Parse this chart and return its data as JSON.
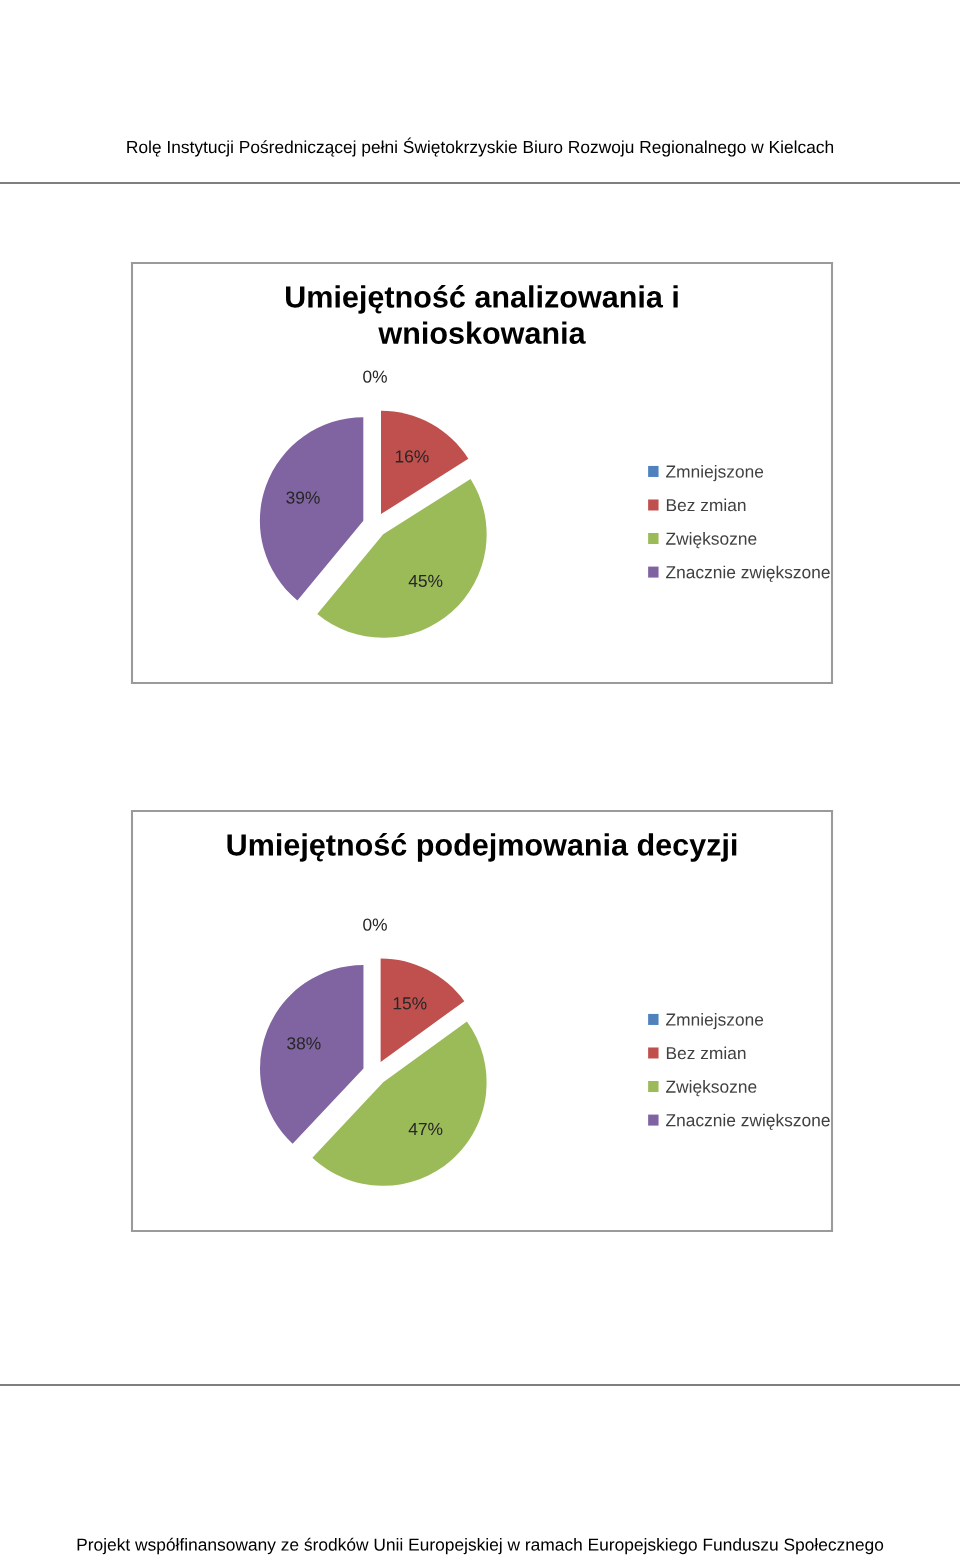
{
  "chart_data": [
    {
      "type": "pie",
      "title": "Umiejętność analizowania i wnioskowania",
      "categories": [
        "Zmniejszone",
        "Bez zmian",
        "Zwięksozne",
        "Znacznie zwiększone"
      ],
      "values": [
        0,
        16,
        45,
        39
      ],
      "colors": [
        "#4f81bd",
        "#c0504d",
        "#9bbb59",
        "#8064a2"
      ],
      "value_labels": [
        "0%",
        "16%",
        "45%",
        "39%"
      ],
      "legend": "right",
      "annotations": [
        "Rolę Instytucji Pośredniczącej pełni Świętokrzyskie Biuro Rozwoju Regionalnego w Kielcach"
      ]
    },
    {
      "type": "pie",
      "title": "Umiejętność podejmowania decyzji",
      "categories": [
        "Zmniejszone",
        "Bez zmian",
        "Zwięksozne",
        "Znacznie zwiększone"
      ],
      "values": [
        0,
        15,
        47,
        38
      ],
      "colors": [
        "#4f81bd",
        "#c0504d",
        "#9bbb59",
        "#8064a2"
      ],
      "value_labels": [
        "0%",
        "15%",
        "47%",
        "38%"
      ],
      "legend": "right",
      "annotations": [
        "Projekt współfinansowany ze środków Unii Europejskiej w ramach Europejskiego Funduszu Społecznego"
      ]
    }
  ]
}
